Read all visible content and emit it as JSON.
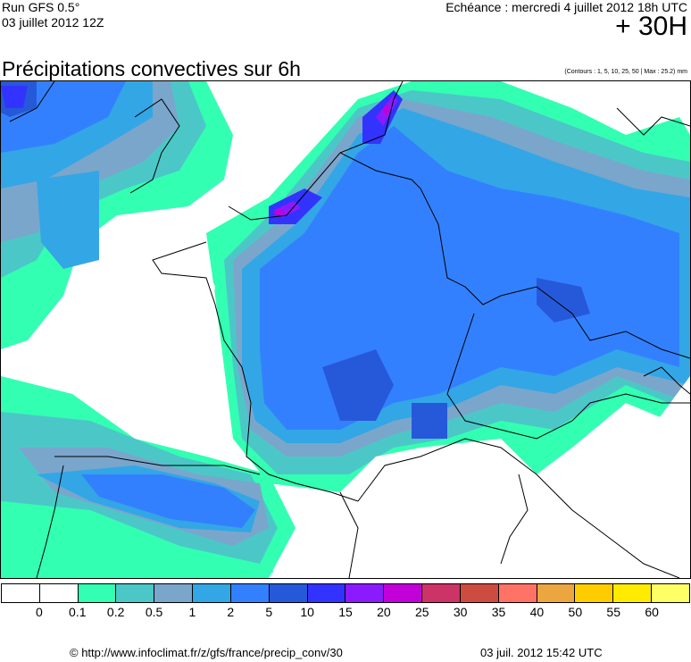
{
  "header": {
    "run_model": "Run GFS 0.5°",
    "run_date": "03 juillet 2012 12Z",
    "echeance": "Echéance : mercredi 4 juillet 2012 18h UTC",
    "offset": "+ 30H",
    "title": "Précipitations convectives sur 6h",
    "contours_note": "(Contours : 1, 5, 10, 25, 50 | Max : 25.2) mm"
  },
  "legend": {
    "colors": [
      "#ffffff",
      "#ffffff",
      "#33ffb3",
      "#4cc7c7",
      "#7aa6cc",
      "#33a6e6",
      "#3380ff",
      "#2659d9",
      "#3333ff",
      "#8c1aff",
      "#c200d9",
      "#cc3366",
      "#cc4d40",
      "#ff7366",
      "#eba640",
      "#ffcc00",
      "#ffeb00",
      "#ffff66"
    ],
    "labels": [
      "0",
      "0.1",
      "0.2",
      "0.5",
      "1",
      "2",
      "5",
      "10",
      "15",
      "20",
      "25",
      "30",
      "35",
      "40",
      "50",
      "55",
      "60"
    ]
  },
  "footer": {
    "source": "© http://www.infoclimat.fr/z/gfs/france/precip_conv/30",
    "generated": "03 juil. 2012 15:42 UTC"
  }
}
